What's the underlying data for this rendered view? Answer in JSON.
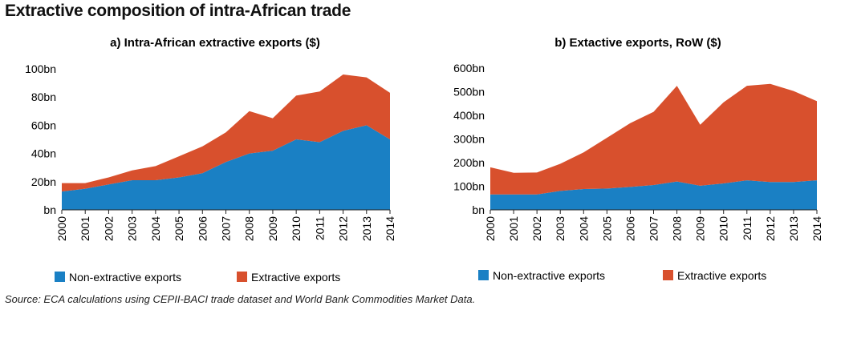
{
  "figure_title": "Extractive composition of intra-African trade",
  "source": "Source: ECA calculations using CEPII-BACI trade dataset and World Bank Commodities Market Data.",
  "colors": {
    "non_extractive": "#1a80c4",
    "extractive": "#d8502d"
  },
  "chart_data": [
    {
      "type": "area",
      "stacked": true,
      "title": "a) Intra-African extractive exports ($)",
      "x": [
        "2000",
        "2001",
        "2002",
        "2003",
        "2004",
        "2005",
        "2006",
        "2007",
        "2008",
        "2009",
        "2010",
        "2011",
        "2012",
        "2013",
        "2014"
      ],
      "series": [
        {
          "name": "Non-extractive exports",
          "color": "#1a80c4",
          "values": [
            13,
            15,
            18,
            21,
            21,
            23,
            26,
            34,
            40,
            42,
            50,
            48,
            56,
            60,
            50
          ]
        },
        {
          "name": "Extractive exports",
          "color": "#d8502d",
          "values": [
            6,
            4,
            5,
            7,
            10,
            15,
            19,
            21,
            30,
            23,
            31,
            36,
            40,
            34,
            33
          ]
        }
      ],
      "ylim": [
        0,
        100
      ],
      "yticks": [
        0,
        20,
        40,
        60,
        80,
        100
      ],
      "ytick_labels": [
        "bn",
        "20bn",
        "40bn",
        "60bn",
        "80bn",
        "100bn"
      ],
      "grid": false,
      "legend": "bottom"
    },
    {
      "type": "area",
      "stacked": true,
      "title": "b) Extactive exports, RoW ($)",
      "x": [
        "2000",
        "2001",
        "2002",
        "2003",
        "2004",
        "2005",
        "2006",
        "2007",
        "2008",
        "2009",
        "2010",
        "2011",
        "2012",
        "2013",
        "2014"
      ],
      "series": [
        {
          "name": "Non-extractive exports",
          "color": "#1a80c4",
          "values": [
            65,
            65,
            65,
            80,
            88,
            90,
            97,
            105,
            120,
            102,
            112,
            125,
            118,
            118,
            125
          ]
        },
        {
          "name": "Extractive exports",
          "color": "#d8502d",
          "values": [
            115,
            92,
            93,
            115,
            155,
            215,
            270,
            310,
            405,
            258,
            343,
            400,
            415,
            385,
            335
          ]
        }
      ],
      "ylim": [
        0,
        600
      ],
      "yticks": [
        0,
        100,
        200,
        300,
        400,
        500,
        600
      ],
      "ytick_labels": [
        "bn",
        "100bn",
        "200bn",
        "300bn",
        "400bn",
        "500bn",
        "600bn"
      ],
      "grid": false,
      "legend": "bottom"
    }
  ]
}
